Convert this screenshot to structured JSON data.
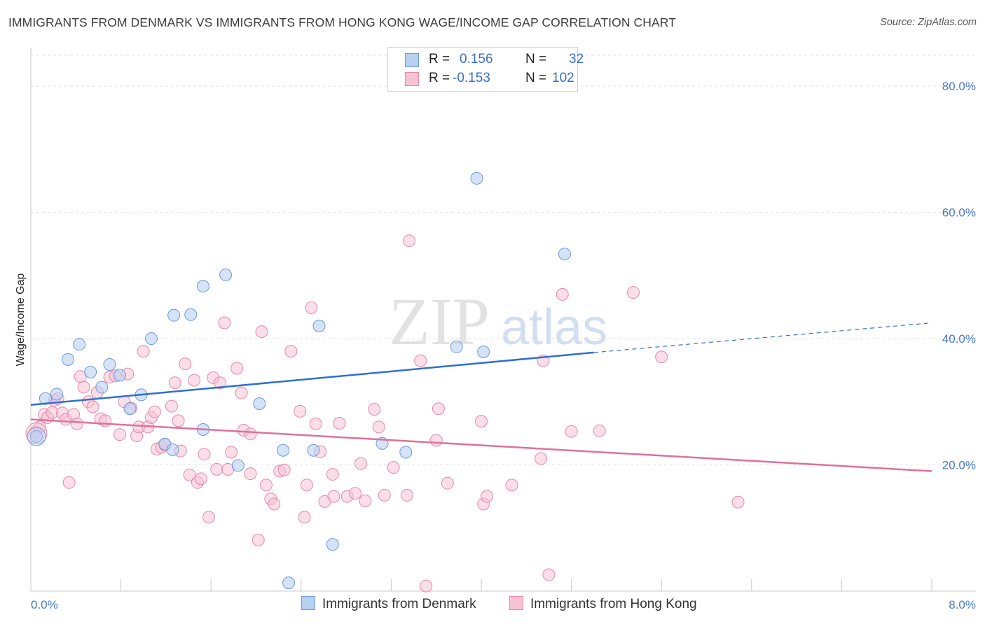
{
  "title": "IMMIGRANTS FROM DENMARK VS IMMIGRANTS FROM HONG KONG WAGE/INCOME GAP CORRELATION CHART",
  "source": "Source: ZipAtlas.com",
  "watermark": {
    "zip": "ZIP",
    "atlas": "atlas"
  },
  "legend": {
    "r_label": "R =",
    "n_label": "N =",
    "rows": [
      {
        "r": "0.156",
        "n": "32",
        "color": "#b8d1f3"
      },
      {
        "r": "-0.153",
        "n": "102",
        "color": "#f7c3d3"
      }
    ]
  },
  "bottom_legend": [
    "Immigrants from Denmark",
    "Immigrants from Hong Kong"
  ],
  "colors": {
    "denmark_fill": "#b8d1f3",
    "denmark_stroke": "#6f9ad8",
    "denmark_line": "#2f6fd0",
    "hongkong_fill": "#f7c3d3",
    "hongkong_stroke": "#e48aa8",
    "hongkong_line": "#e0709a",
    "tick_text": "#4a78c4",
    "grid": "#e2e2e2"
  },
  "chart_data": {
    "type": "scatter",
    "title": "IMMIGRANTS FROM DENMARK VS IMMIGRANTS FROM HONG KONG WAGE/INCOME GAP CORRELATION CHART",
    "xlabel": "",
    "ylabel": "Wage/Income Gap",
    "xlim": [
      0,
      8
    ],
    "ylim": [
      0,
      85
    ],
    "x_tick_labels": [
      "0.0%",
      "8.0%"
    ],
    "y_ticks": [
      20,
      40,
      60,
      80
    ],
    "y_tick_labels": [
      "20.0%",
      "40.0%",
      "60.0%",
      "80.0%"
    ],
    "grid": "horizontal dashed",
    "legend_position": "top-center",
    "series": [
      {
        "name": "Immigrants from Denmark",
        "R": 0.156,
        "N": 32,
        "trend": {
          "x": [
            0,
            5.0
          ],
          "y": [
            29.5,
            37.8
          ],
          "dashed_to": [
            8.0,
            42.5
          ]
        },
        "points": [
          [
            0.05,
            24.5
          ],
          [
            0.13,
            30.5
          ],
          [
            0.23,
            31.2
          ],
          [
            0.33,
            36.7
          ],
          [
            0.43,
            39.1
          ],
          [
            0.53,
            34.7
          ],
          [
            0.63,
            32.3
          ],
          [
            0.7,
            35.9
          ],
          [
            0.79,
            34.2
          ],
          [
            0.88,
            28.9
          ],
          [
            0.98,
            31.1
          ],
          [
            1.07,
            40.0
          ],
          [
            1.19,
            23.3
          ],
          [
            1.26,
            22.4
          ],
          [
            1.27,
            43.7
          ],
          [
            1.42,
            43.8
          ],
          [
            1.53,
            25.6
          ],
          [
            1.53,
            48.3
          ],
          [
            1.73,
            50.1
          ],
          [
            1.84,
            19.9
          ],
          [
            2.03,
            29.7
          ],
          [
            2.24,
            22.3
          ],
          [
            2.29,
            1.3
          ],
          [
            2.51,
            22.3
          ],
          [
            2.56,
            42.0
          ],
          [
            2.68,
            7.4
          ],
          [
            3.12,
            23.4
          ],
          [
            3.33,
            22.0
          ],
          [
            3.78,
            38.7
          ],
          [
            4.02,
            37.9
          ],
          [
            3.96,
            65.4
          ],
          [
            4.74,
            53.4
          ]
        ]
      },
      {
        "name": "Immigrants from Hong Kong",
        "R": -0.153,
        "N": 102,
        "trend": {
          "x": [
            0,
            8.0
          ],
          "y": [
            27.2,
            19.0
          ]
        },
        "points": [
          [
            0.04,
            25.2
          ],
          [
            0.08,
            26.0
          ],
          [
            0.12,
            28.0
          ],
          [
            0.15,
            27.5
          ],
          [
            0.19,
            28.3
          ],
          [
            0.21,
            30.2
          ],
          [
            0.24,
            30.5
          ],
          [
            0.28,
            28.2
          ],
          [
            0.31,
            27.2
          ],
          [
            0.34,
            17.2
          ],
          [
            0.38,
            28.0
          ],
          [
            0.41,
            26.5
          ],
          [
            0.44,
            34.0
          ],
          [
            0.47,
            32.3
          ],
          [
            0.51,
            30.0
          ],
          [
            0.55,
            29.2
          ],
          [
            0.59,
            31.5
          ],
          [
            0.62,
            27.3
          ],
          [
            0.66,
            27.0
          ],
          [
            0.7,
            33.9
          ],
          [
            0.75,
            34.1
          ],
          [
            0.79,
            24.8
          ],
          [
            0.83,
            30.0
          ],
          [
            0.86,
            34.4
          ],
          [
            0.89,
            29.0
          ],
          [
            0.94,
            24.6
          ],
          [
            0.96,
            26.0
          ],
          [
            1.0,
            38.0
          ],
          [
            1.04,
            26.0
          ],
          [
            1.07,
            27.5
          ],
          [
            1.1,
            28.4
          ],
          [
            1.12,
            22.5
          ],
          [
            1.16,
            22.8
          ],
          [
            1.19,
            23.2
          ],
          [
            1.25,
            29.3
          ],
          [
            1.28,
            33.0
          ],
          [
            1.31,
            27.0
          ],
          [
            1.33,
            22.2
          ],
          [
            1.37,
            36.0
          ],
          [
            1.41,
            18.4
          ],
          [
            1.45,
            33.4
          ],
          [
            1.48,
            17.2
          ],
          [
            1.51,
            17.8
          ],
          [
            1.54,
            21.7
          ],
          [
            1.58,
            11.7
          ],
          [
            1.62,
            33.8
          ],
          [
            1.65,
            19.3
          ],
          [
            1.68,
            33.0
          ],
          [
            1.72,
            42.5
          ],
          [
            1.75,
            19.3
          ],
          [
            1.78,
            22.0
          ],
          [
            1.83,
            35.3
          ],
          [
            1.87,
            31.4
          ],
          [
            1.89,
            25.5
          ],
          [
            1.95,
            24.9
          ],
          [
            2.02,
            8.1
          ],
          [
            2.05,
            41.1
          ],
          [
            2.09,
            16.8
          ],
          [
            2.13,
            14.6
          ],
          [
            2.16,
            13.8
          ],
          [
            2.21,
            19.0
          ],
          [
            2.25,
            19.2
          ],
          [
            2.31,
            38.0
          ],
          [
            2.39,
            28.5
          ],
          [
            2.43,
            11.7
          ],
          [
            2.45,
            16.8
          ],
          [
            2.49,
            44.9
          ],
          [
            2.53,
            26.5
          ],
          [
            2.57,
            22.1
          ],
          [
            2.61,
            14.2
          ],
          [
            2.68,
            18.5
          ],
          [
            2.69,
            15.0
          ],
          [
            2.74,
            26.6
          ],
          [
            2.81,
            15.0
          ],
          [
            2.88,
            15.5
          ],
          [
            2.93,
            20.2
          ],
          [
            2.97,
            14.3
          ],
          [
            3.05,
            28.8
          ],
          [
            3.09,
            26.0
          ],
          [
            3.14,
            15.2
          ],
          [
            3.22,
            19.6
          ],
          [
            3.34,
            15.2
          ],
          [
            3.36,
            55.5
          ],
          [
            3.46,
            36.5
          ],
          [
            3.51,
            0.8
          ],
          [
            3.6,
            23.9
          ],
          [
            3.62,
            28.9
          ],
          [
            3.7,
            17.1
          ],
          [
            4.0,
            26.9
          ],
          [
            4.02,
            13.8
          ],
          [
            4.05,
            15.0
          ],
          [
            4.27,
            16.8
          ],
          [
            4.55,
            36.5
          ],
          [
            4.6,
            2.6
          ],
          [
            4.72,
            47.0
          ],
          [
            4.8,
            25.3
          ],
          [
            5.05,
            25.4
          ],
          [
            5.35,
            47.3
          ],
          [
            5.6,
            37.1
          ],
          [
            6.28,
            14.1
          ],
          [
            4.53,
            21.0
          ],
          [
            1.95,
            18.6
          ]
        ]
      }
    ]
  }
}
